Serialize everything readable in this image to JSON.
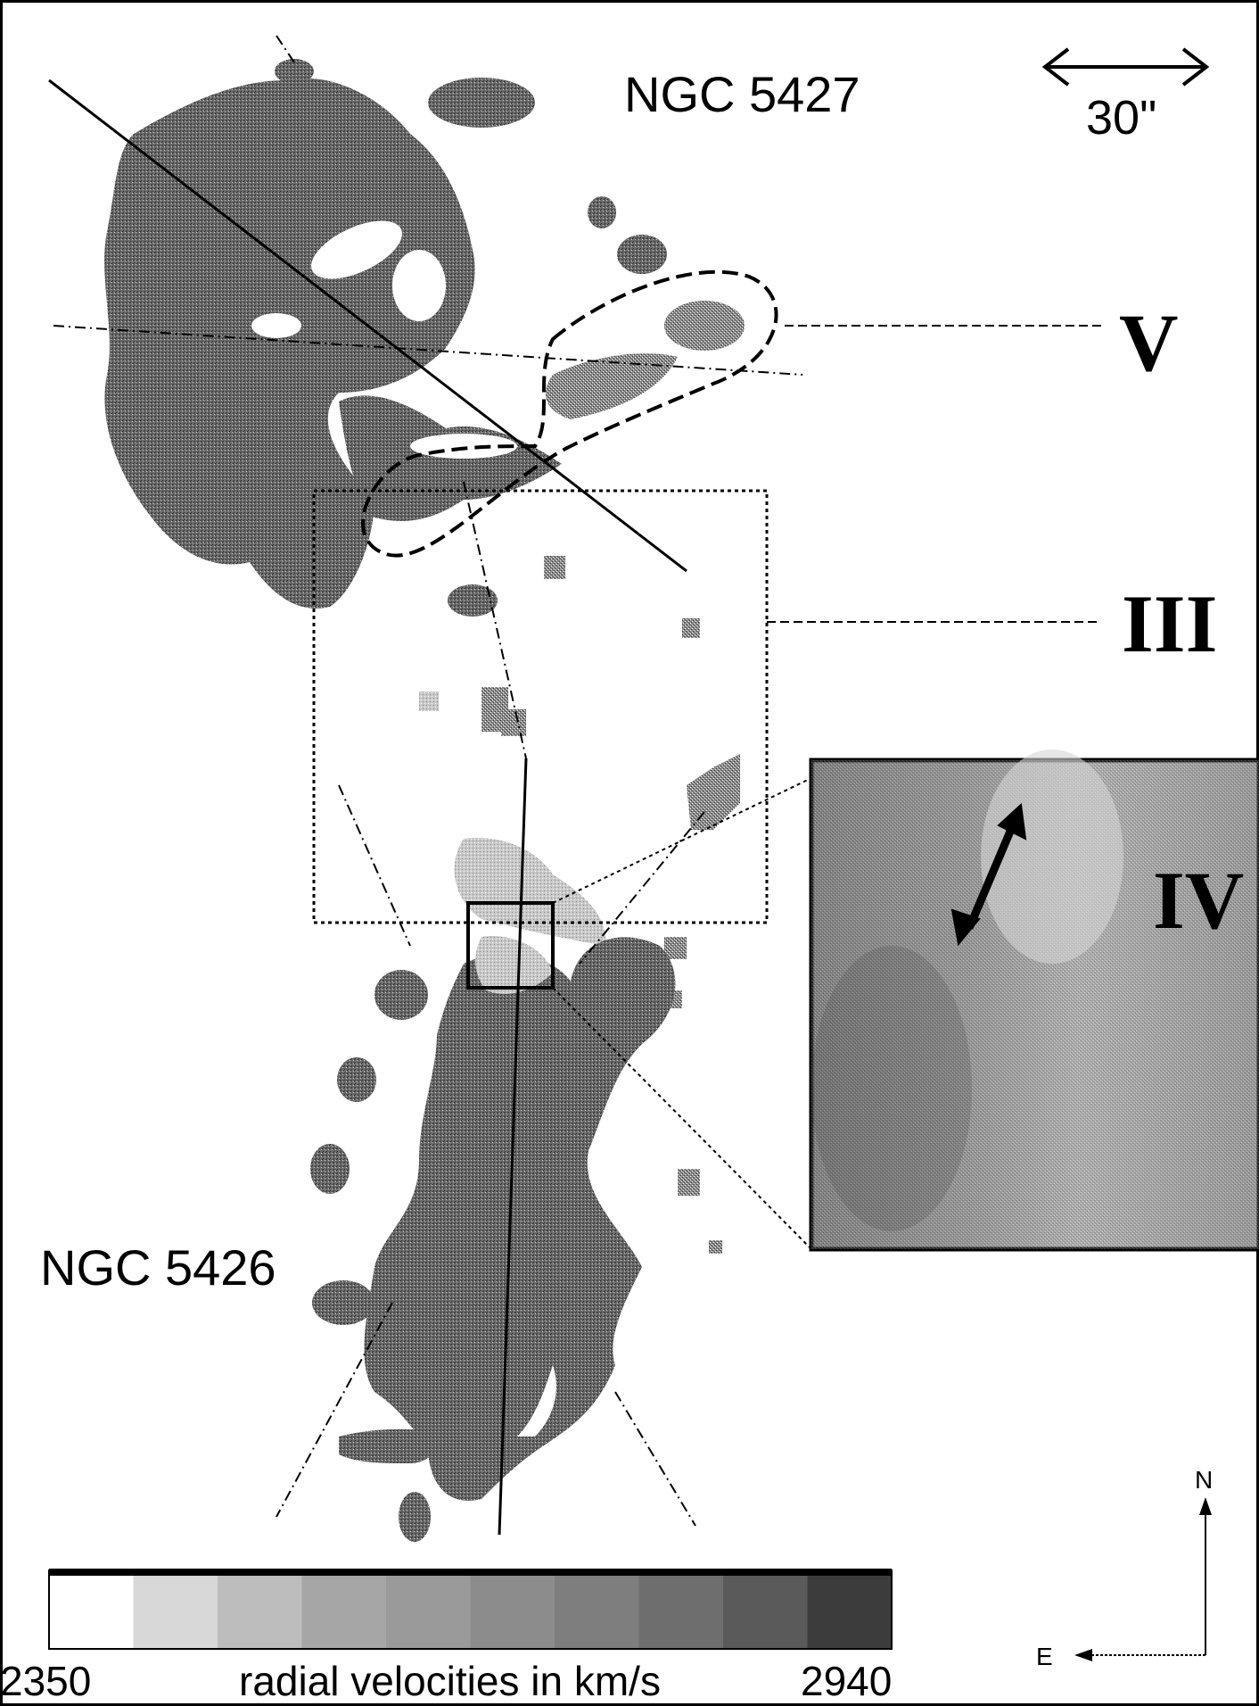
{
  "labels": {
    "galaxy_north": "NGC 5427",
    "galaxy_south": "NGC 5426",
    "scale": "30\"",
    "region_III": "III",
    "region_IV": "IV",
    "region_V": "V",
    "compass_north": "N",
    "compass_east": "E"
  },
  "colorbar": {
    "min_label": "2350",
    "max_label": "2940",
    "title": "radial velocities in km/s",
    "colors": [
      "#ffffff",
      "#d8d8d8",
      "#bdbdbd",
      "#a6a6a6",
      "#9a9a9a",
      "#8c8c8c",
      "#7e7e7e",
      "#6e6e6e",
      "#5a5a5a",
      "#3c3c3c"
    ]
  }
}
